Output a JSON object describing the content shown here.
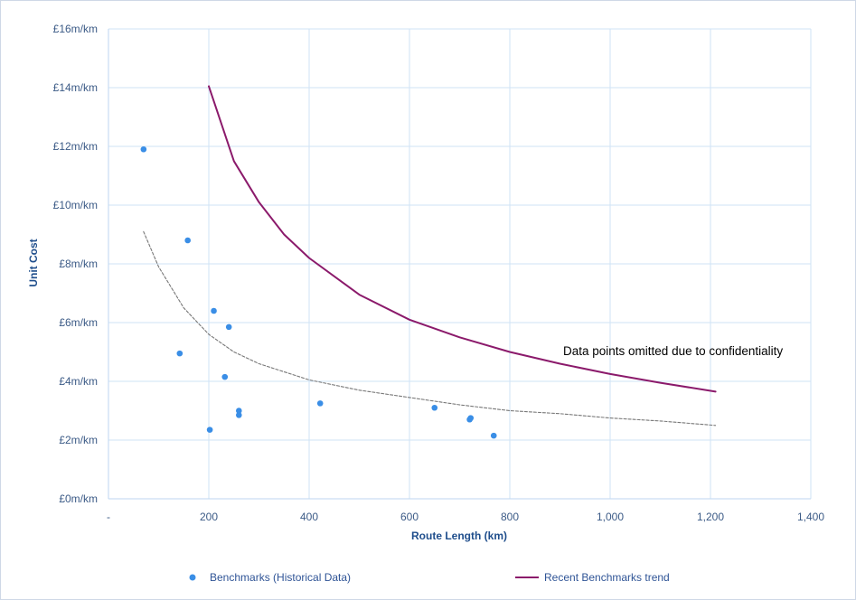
{
  "chart_data": {
    "type": "scatter",
    "title": "",
    "xlabel": "Route Length (km)",
    "ylabel": "Unit Cost",
    "xlim": [
      0,
      1400
    ],
    "ylim": [
      0,
      16
    ],
    "x_ticks": [
      0,
      200,
      400,
      600,
      800,
      1000,
      1200,
      1400
    ],
    "x_tick_labels": [
      "-",
      "200",
      "400",
      "600",
      "800",
      "1,000",
      "1,200",
      "1,400"
    ],
    "y_ticks": [
      0,
      2,
      4,
      6,
      8,
      10,
      12,
      14,
      16
    ],
    "y_tick_labels": [
      "£0m/km",
      "£2m/km",
      "£4m/km",
      "£6m/km",
      "£8m/km",
      "£10m/km",
      "£12m/km",
      "£14m/km",
      "£16m/km"
    ],
    "grid": true,
    "legend_position": "bottom",
    "annotation": "Data points omitted due to confidentiality",
    "series": [
      {
        "name": "Benchmarks (Historical Data)",
        "kind": "scatter",
        "color": "#3a8ee6",
        "points": [
          {
            "x": 70,
            "y": 11.9
          },
          {
            "x": 158,
            "y": 8.8
          },
          {
            "x": 210,
            "y": 6.4
          },
          {
            "x": 240,
            "y": 5.85
          },
          {
            "x": 142,
            "y": 4.95
          },
          {
            "x": 232,
            "y": 4.15
          },
          {
            "x": 260,
            "y": 3.0
          },
          {
            "x": 260,
            "y": 2.85
          },
          {
            "x": 202,
            "y": 2.35
          },
          {
            "x": 422,
            "y": 3.25
          },
          {
            "x": 650,
            "y": 3.1
          },
          {
            "x": 720,
            "y": 2.7
          },
          {
            "x": 722,
            "y": 2.75
          },
          {
            "x": 768,
            "y": 2.15
          }
        ]
      },
      {
        "name": "Recent Benchmarks trend",
        "kind": "line",
        "color": "#8b1a6b",
        "x": [
          200,
          250,
          300,
          350,
          400,
          500,
          600,
          700,
          800,
          900,
          1000,
          1100,
          1210
        ],
        "y": [
          14.05,
          11.5,
          10.1,
          9.0,
          8.2,
          6.95,
          6.1,
          5.5,
          5.0,
          4.6,
          4.25,
          3.95,
          3.65
        ]
      },
      {
        "kind": "dashed-line",
        "color": "#777777",
        "x": [
          70,
          100,
          150,
          200,
          250,
          300,
          400,
          500,
          600,
          700,
          800,
          900,
          1000,
          1100,
          1210
        ],
        "y": [
          9.1,
          7.9,
          6.5,
          5.6,
          5.0,
          4.6,
          4.05,
          3.7,
          3.45,
          3.2,
          3.0,
          2.9,
          2.75,
          2.65,
          2.5
        ]
      }
    ]
  }
}
